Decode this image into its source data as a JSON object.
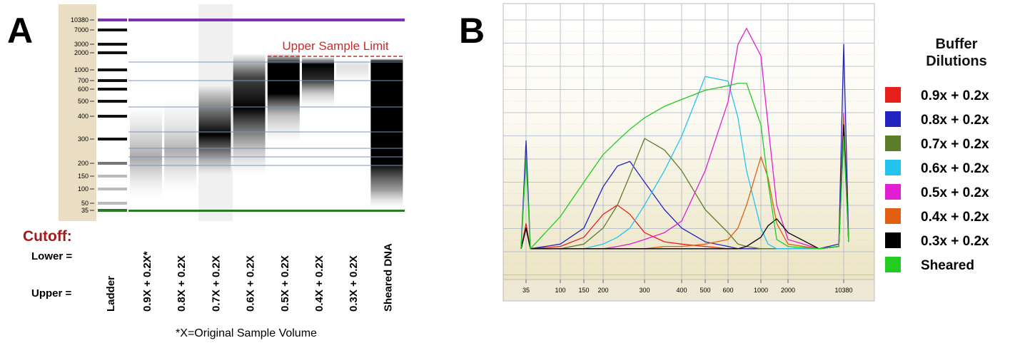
{
  "panel_a": {
    "label": "A",
    "ladder_sizes": [
      10380,
      7000,
      3000,
      2000,
      1000,
      700,
      600,
      500,
      400,
      300,
      200,
      150,
      100,
      50,
      35
    ],
    "upper_limit_label": "Upper Sample Limit",
    "cutoff_label": "Cutoff:",
    "lower_label": "Lower =",
    "upper_label": "Upper =",
    "lanes": [
      "Ladder",
      "0.9X + 0.2X*",
      "0.8X + 0.2X",
      "0.7X + 0.2X",
      "0.6X + 0.2X",
      "0.5X + 0.2X",
      "0.4X + 0.2X",
      "0.3X + 0.2X",
      "Sheared DNA"
    ],
    "footnote": "*X=Original Sample Volume"
  },
  "chart_data": {
    "type": "line",
    "panel_label": "B",
    "legend_title": "Buffer Dilutions",
    "x": [
      30,
      35,
      40,
      100,
      150,
      200,
      230,
      260,
      300,
      350,
      400,
      500,
      600,
      700,
      800,
      1000,
      1200,
      1500,
      2000,
      5000,
      9000,
      10380,
      12000
    ],
    "xticks": [
      35,
      100,
      150,
      200,
      300,
      400,
      500,
      600,
      1000,
      2000,
      10380
    ],
    "xlim": [
      17,
      25700
    ],
    "ylim": [
      0,
      100
    ],
    "series": [
      {
        "name": "0.9x + 0.2x",
        "color": "#e8201c",
        "values": [
          1,
          12,
          1,
          2,
          6,
          16,
          20,
          16,
          8,
          4,
          3,
          2,
          1,
          1,
          1,
          1,
          1,
          1,
          1,
          1,
          2,
          55,
          4
        ]
      },
      {
        "name": "0.8x + 0.2x",
        "color": "#2323c0",
        "values": [
          1,
          48,
          1,
          3,
          10,
          28,
          37,
          39,
          30,
          18,
          10,
          4,
          2,
          1,
          1,
          1,
          1,
          1,
          1,
          1,
          3,
          90,
          5
        ]
      },
      {
        "name": "0.7x + 0.2x",
        "color": "#5e7d2a",
        "values": [
          1,
          10,
          1,
          1,
          3,
          10,
          20,
          33,
          49,
          44,
          35,
          18,
          8,
          3,
          2,
          1,
          1,
          1,
          1,
          1,
          2,
          52,
          4
        ]
      },
      {
        "name": "0.6x + 0.2x",
        "color": "#22c4ee",
        "values": [
          1,
          10,
          1,
          1,
          1,
          3,
          6,
          10,
          20,
          35,
          50,
          76,
          74,
          58,
          35,
          10,
          3,
          1,
          1,
          1,
          2,
          55,
          4
        ]
      },
      {
        "name": "0.5x + 0.2x",
        "color": "#e020d0",
        "values": [
          1,
          10,
          1,
          1,
          1,
          1,
          2,
          3,
          5,
          8,
          13,
          35,
          65,
          90,
          97,
          85,
          55,
          20,
          5,
          1,
          2,
          60,
          4
        ]
      },
      {
        "name": "0.4x + 0.2x",
        "color": "#e06010",
        "values": [
          1,
          10,
          1,
          1,
          1,
          1,
          1,
          1,
          1,
          2,
          2,
          3,
          5,
          10,
          20,
          41,
          32,
          12,
          3,
          1,
          2,
          58,
          4
        ]
      },
      {
        "name": "0.3x + 0.2x",
        "color": "#000000",
        "values": [
          1,
          10,
          1,
          1,
          1,
          1,
          1,
          1,
          1,
          1,
          1,
          1,
          1,
          1,
          2,
          6,
          11,
          14,
          8,
          1,
          2,
          55,
          4
        ]
      },
      {
        "name": "Sheared",
        "color": "#22cc22",
        "values": [
          1,
          40,
          1,
          15,
          30,
          42,
          48,
          53,
          58,
          63,
          66,
          70,
          72,
          73,
          73,
          55,
          30,
          5,
          2,
          1,
          2,
          50,
          4
        ]
      }
    ]
  }
}
